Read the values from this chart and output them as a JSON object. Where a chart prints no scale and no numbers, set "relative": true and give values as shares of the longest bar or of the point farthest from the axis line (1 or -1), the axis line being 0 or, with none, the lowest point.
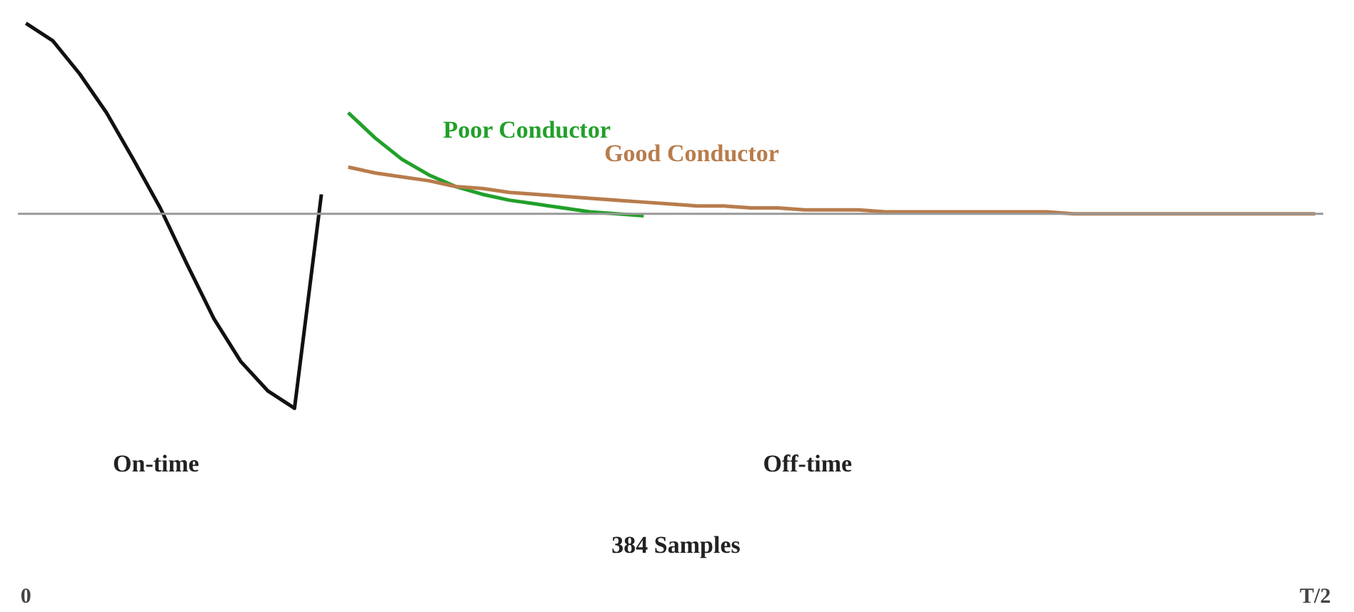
{
  "chart_data": {
    "type": "line",
    "relative": true,
    "legend": false,
    "grid": false,
    "categories": [
      "0",
      null,
      null,
      null,
      null,
      null,
      null,
      null,
      null,
      null,
      null,
      null,
      null,
      null,
      null,
      null,
      null,
      null,
      null,
      null,
      null,
      null,
      null,
      null,
      null,
      null,
      null,
      null,
      null,
      null,
      null,
      null,
      null,
      null,
      null,
      null,
      null,
      null,
      null,
      null,
      null,
      null,
      null,
      null,
      null,
      null,
      null,
      null,
      "T/2"
    ],
    "series": [
      {
        "color": "#111111",
        "values": [
          0.98,
          0.89,
          0.72,
          0.52,
          0.28,
          0.03,
          -0.26,
          -0.54,
          -0.76,
          -0.91,
          -1,
          0.1,
          null,
          null,
          null,
          null,
          null,
          null,
          null,
          null,
          null,
          null,
          null,
          null,
          null,
          null,
          null,
          null,
          null,
          null,
          null,
          null,
          null,
          null,
          null,
          null,
          null,
          null,
          null,
          null,
          null,
          null,
          null,
          null,
          null,
          null,
          null,
          null,
          null
        ]
      },
      {
        "name": "Poor Conductor",
        "color": "#22a02a",
        "values": [
          null,
          null,
          null,
          null,
          null,
          null,
          null,
          null,
          null,
          null,
          null,
          null,
          0.52,
          0.39,
          0.28,
          0.2,
          0.14,
          0.1,
          0.07,
          0.05,
          0.03,
          0.01,
          0,
          -0.01,
          null,
          null,
          null,
          null,
          null,
          null,
          null,
          null,
          null,
          null,
          null,
          null,
          null,
          null,
          null,
          null,
          null,
          null,
          null,
          null,
          null,
          null,
          null,
          null,
          null
        ]
      },
      {
        "name": "Good Conductor",
        "color": "#b87c4c",
        "values": [
          null,
          null,
          null,
          null,
          null,
          null,
          null,
          null,
          null,
          null,
          null,
          null,
          0.24,
          0.21,
          0.19,
          0.17,
          0.14,
          0.13,
          0.11,
          0.1,
          0.09,
          0.08,
          0.07,
          0.06,
          0.05,
          0.04,
          0.04,
          0.03,
          0.03,
          0.02,
          0.02,
          0.02,
          0.01,
          0.01,
          0.01,
          0.01,
          0.01,
          0.01,
          0.01,
          0,
          0,
          0,
          0,
          0,
          0,
          0,
          0,
          0,
          0
        ]
      }
    ],
    "ref_lines": [
      {
        "axis": "y",
        "value": 0,
        "color": "#999999"
      }
    ],
    "annotations": [
      "On-time",
      "Off-time",
      "384 Samples"
    ]
  }
}
